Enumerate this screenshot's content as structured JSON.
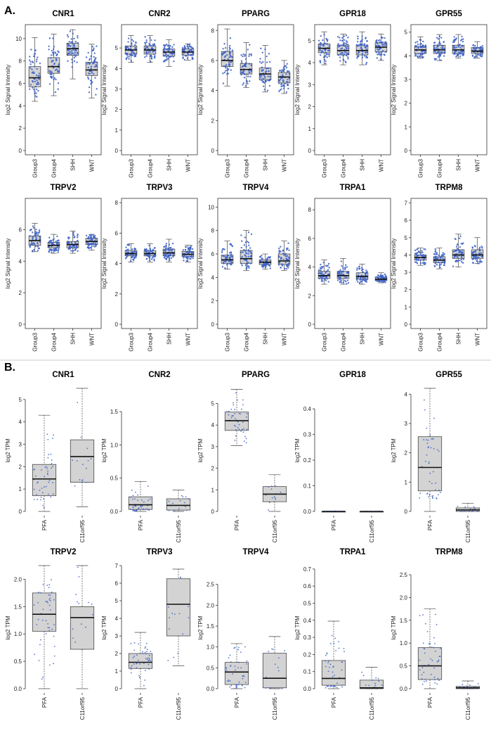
{
  "figure": {
    "section_a": "A.",
    "section_b": "B."
  },
  "chart_data": [
    {
      "id": "a-cnr1",
      "section": "A",
      "type": "boxplot",
      "title": "CNR1",
      "ylabel": "log2 Signal Intensity",
      "ylim": [
        0,
        11
      ],
      "yticks": [
        0,
        2,
        4,
        6,
        8,
        10
      ],
      "categories": [
        "Group3",
        "Group4",
        "SHH",
        "WNT"
      ],
      "boxes": [
        {
          "min": 4.4,
          "q1": 5.7,
          "median": 6.5,
          "q3": 7.5,
          "max": 10.1
        },
        {
          "min": 4.9,
          "q1": 6.9,
          "median": 7.5,
          "q3": 8.3,
          "max": 10.4
        },
        {
          "min": 6.4,
          "q1": 8.5,
          "median": 9.1,
          "q3": 9.6,
          "max": 10.8
        },
        {
          "min": 4.7,
          "q1": 6.7,
          "median": 7.2,
          "q3": 7.9,
          "max": 9.5
        }
      ]
    },
    {
      "id": "a-cnr2",
      "section": "A",
      "type": "boxplot",
      "title": "CNR2",
      "ylabel": "log2 Signal Intensity",
      "ylim": [
        0,
        6
      ],
      "yticks": [
        0,
        1,
        2,
        3,
        4,
        5
      ],
      "categories": [
        "Group3",
        "Group4",
        "SHH",
        "WNT"
      ],
      "boxes": [
        {
          "min": 4.3,
          "q1": 4.7,
          "median": 4.9,
          "q3": 5.1,
          "max": 5.6
        },
        {
          "min": 4.3,
          "q1": 4.7,
          "median": 4.9,
          "q3": 5.1,
          "max": 5.6
        },
        {
          "min": 4.1,
          "q1": 4.6,
          "median": 4.8,
          "q3": 4.95,
          "max": 5.4
        },
        {
          "min": 4.4,
          "q1": 4.65,
          "median": 4.8,
          "q3": 4.95,
          "max": 5.2
        }
      ]
    },
    {
      "id": "a-pparg",
      "section": "A",
      "type": "boxplot",
      "title": "PPARG",
      "ylabel": "log2 Signal Intensity",
      "ylim": [
        0,
        8.2
      ],
      "yticks": [
        0,
        2,
        4,
        6,
        8
      ],
      "categories": [
        "Group3",
        "Group4",
        "SHH",
        "WNT"
      ],
      "boxes": [
        {
          "min": 4.3,
          "q1": 5.6,
          "median": 6.0,
          "q3": 6.6,
          "max": 8.1
        },
        {
          "min": 4.2,
          "q1": 5.1,
          "median": 5.4,
          "q3": 5.8,
          "max": 7.2
        },
        {
          "min": 3.9,
          "q1": 4.7,
          "median": 5.1,
          "q3": 5.5,
          "max": 7.0
        },
        {
          "min": 3.8,
          "q1": 4.5,
          "median": 4.9,
          "q3": 5.2,
          "max": 6.0
        }
      ]
    },
    {
      "id": "a-gpr18",
      "section": "A",
      "type": "boxplot",
      "title": "GPR18",
      "ylabel": "log2 Signal Intensity",
      "ylim": [
        0,
        5.6
      ],
      "yticks": [
        0,
        1,
        2,
        3,
        4,
        5
      ],
      "categories": [
        "Group3",
        "Group4",
        "SHH",
        "WNT"
      ],
      "boxes": [
        {
          "min": 3.9,
          "q1": 4.45,
          "median": 4.65,
          "q3": 4.85,
          "max": 5.4
        },
        {
          "min": 3.9,
          "q1": 4.35,
          "median": 4.55,
          "q3": 4.8,
          "max": 5.3
        },
        {
          "min": 3.9,
          "q1": 4.35,
          "median": 4.55,
          "q3": 4.8,
          "max": 5.4
        },
        {
          "min": 4.1,
          "q1": 4.5,
          "median": 4.7,
          "q3": 4.9,
          "max": 5.3
        }
      ]
    },
    {
      "id": "a-gpr55",
      "section": "A",
      "type": "boxplot",
      "title": "GPR55",
      "ylabel": "log2 Signal Intensity",
      "ylim": [
        0,
        5.2
      ],
      "yticks": [
        0,
        1,
        2,
        3,
        4,
        5
      ],
      "categories": [
        "Group3",
        "Group4",
        "SHH",
        "WNT"
      ],
      "boxes": [
        {
          "min": 3.9,
          "q1": 4.1,
          "median": 4.25,
          "q3": 4.4,
          "max": 4.8
        },
        {
          "min": 3.8,
          "q1": 4.1,
          "median": 4.25,
          "q3": 4.45,
          "max": 4.9
        },
        {
          "min": 3.9,
          "q1": 4.1,
          "median": 4.25,
          "q3": 4.45,
          "max": 4.9
        },
        {
          "min": 3.9,
          "q1": 4.1,
          "median": 4.2,
          "q3": 4.35,
          "max": 4.6
        }
      ]
    },
    {
      "id": "a-trpv2",
      "section": "A",
      "type": "boxplot",
      "title": "TRPV2",
      "ylabel": "log2 Signal Intensity",
      "ylim": [
        0,
        7.8
      ],
      "yticks": [
        0,
        2,
        4,
        6
      ],
      "categories": [
        "Group3",
        "Group4",
        "SHH",
        "WNT"
      ],
      "boxes": [
        {
          "min": 4.6,
          "q1": 5.0,
          "median": 5.3,
          "q3": 5.6,
          "max": 6.4
        },
        {
          "min": 4.5,
          "q1": 4.85,
          "median": 5.0,
          "q3": 5.2,
          "max": 5.7
        },
        {
          "min": 4.5,
          "q1": 4.85,
          "median": 5.05,
          "q3": 5.25,
          "max": 5.9
        },
        {
          "min": 4.7,
          "q1": 5.05,
          "median": 5.25,
          "q3": 5.45,
          "max": 5.7
        }
      ]
    },
    {
      "id": "a-trpv3",
      "section": "A",
      "type": "boxplot",
      "title": "TRPV3",
      "ylabel": "log2 Signal Intensity",
      "ylim": [
        0,
        8.1
      ],
      "yticks": [
        0,
        2,
        4,
        6,
        8
      ],
      "categories": [
        "Group3",
        "Group4",
        "SHH",
        "WNT"
      ],
      "boxes": [
        {
          "min": 4.1,
          "q1": 4.5,
          "median": 4.65,
          "q3": 4.85,
          "max": 5.3
        },
        {
          "min": 4.1,
          "q1": 4.5,
          "median": 4.65,
          "q3": 4.85,
          "max": 5.3
        },
        {
          "min": 4.1,
          "q1": 4.5,
          "median": 4.7,
          "q3": 4.95,
          "max": 5.6
        },
        {
          "min": 4.1,
          "q1": 4.45,
          "median": 4.6,
          "q3": 4.8,
          "max": 5.2
        }
      ]
    },
    {
      "id": "a-trpv4",
      "section": "A",
      "type": "boxplot",
      "title": "TRPV4",
      "ylabel": "log2 Signal Intensity",
      "ylim": [
        0,
        10.5
      ],
      "yticks": [
        0,
        2,
        4,
        6,
        8,
        10
      ],
      "categories": [
        "Group3",
        "Group4",
        "SHH",
        "WNT"
      ],
      "boxes": [
        {
          "min": 4.7,
          "q1": 5.2,
          "median": 5.5,
          "q3": 5.9,
          "max": 7.1
        },
        {
          "min": 4.6,
          "q1": 5.2,
          "median": 5.6,
          "q3": 6.3,
          "max": 8.0
        },
        {
          "min": 4.7,
          "q1": 5.1,
          "median": 5.3,
          "q3": 5.5,
          "max": 6.0
        },
        {
          "min": 4.6,
          "q1": 5.1,
          "median": 5.4,
          "q3": 6.0,
          "max": 7.1
        }
      ]
    },
    {
      "id": "a-trpa1",
      "section": "A",
      "type": "boxplot",
      "title": "TRPA1",
      "ylabel": "log2 Signal Intensity",
      "ylim": [
        0,
        8.6
      ],
      "yticks": [
        0,
        2,
        4,
        6,
        8
      ],
      "categories": [
        "Group3",
        "Group4",
        "SHH",
        "WNT"
      ],
      "boxes": [
        {
          "min": 2.8,
          "q1": 3.2,
          "median": 3.4,
          "q3": 3.7,
          "max": 4.5
        },
        {
          "min": 2.8,
          "q1": 3.2,
          "median": 3.4,
          "q3": 3.7,
          "max": 4.6
        },
        {
          "min": 2.8,
          "q1": 3.15,
          "median": 3.35,
          "q3": 3.6,
          "max": 4.2
        },
        {
          "min": 2.9,
          "q1": 3.05,
          "median": 3.15,
          "q3": 3.3,
          "max": 3.6
        }
      ]
    },
    {
      "id": "a-trpm8",
      "section": "A",
      "type": "boxplot",
      "title": "TRPM8",
      "ylabel": "log2 Signal Intensity",
      "ylim": [
        0,
        7.1
      ],
      "yticks": [
        0,
        1,
        2,
        3,
        4,
        5,
        6,
        7
      ],
      "categories": [
        "Group3",
        "Group4",
        "SHH",
        "WNT"
      ],
      "boxes": [
        {
          "min": 3.4,
          "q1": 3.7,
          "median": 3.85,
          "q3": 4.0,
          "max": 4.4
        },
        {
          "min": 3.2,
          "q1": 3.55,
          "median": 3.7,
          "q3": 3.9,
          "max": 4.4
        },
        {
          "min": 3.3,
          "q1": 3.8,
          "median": 4.0,
          "q3": 4.3,
          "max": 5.2
        },
        {
          "min": 3.5,
          "q1": 3.8,
          "median": 4.0,
          "q3": 4.3,
          "max": 5.0
        }
      ]
    },
    {
      "id": "b-cnr1",
      "section": "B",
      "type": "boxplot",
      "title": "CNR1",
      "ylabel": "log2 TPM",
      "ylim": [
        0,
        5.5
      ],
      "yticks": [
        0,
        1,
        2,
        3,
        4,
        5
      ],
      "categories": [
        "PFA",
        "C11orf95"
      ],
      "boxes": [
        {
          "min": 0.0,
          "q1": 0.7,
          "median": 1.45,
          "q3": 2.1,
          "max": 4.3
        },
        {
          "min": 0.2,
          "q1": 1.3,
          "median": 2.45,
          "q3": 3.2,
          "max": 5.5
        }
      ]
    },
    {
      "id": "b-cnr2",
      "section": "B",
      "type": "boxplot",
      "title": "CNR2",
      "ylabel": "log2 TPM",
      "ylim": [
        0,
        1.85
      ],
      "yticks": [
        0.0,
        0.5,
        1.0,
        1.5
      ],
      "categories": [
        "PFA",
        "C11orf95"
      ],
      "boxes": [
        {
          "min": 0.0,
          "q1": 0.03,
          "median": 0.1,
          "q3": 0.22,
          "max": 0.45
        },
        {
          "min": 0.0,
          "q1": 0.02,
          "median": 0.09,
          "q3": 0.19,
          "max": 0.32
        }
      ]
    },
    {
      "id": "b-pparg",
      "section": "B",
      "type": "boxplot",
      "title": "PPARG",
      "ylabel": "log2 TPM",
      "ylim": [
        0,
        5.7
      ],
      "yticks": [
        0,
        1,
        2,
        3,
        4,
        5
      ],
      "categories": [
        "PFA",
        "C11orf95"
      ],
      "boxes": [
        {
          "min": 3.05,
          "q1": 3.75,
          "median": 4.2,
          "q3": 4.6,
          "max": 5.65
        },
        {
          "min": 0.0,
          "q1": 0.45,
          "median": 0.8,
          "q3": 1.15,
          "max": 1.7
        }
      ]
    },
    {
      "id": "b-gpr18",
      "section": "B",
      "type": "boxplot",
      "title": "GPR18",
      "ylabel": "log2 TPM",
      "ylim": [
        0,
        0.48
      ],
      "yticks": [
        0.0,
        0.1,
        0.2,
        0.3,
        0.4
      ],
      "categories": [
        "PFA",
        "C11orf95"
      ],
      "boxes": [
        {
          "min": 0.0,
          "q1": 0.0,
          "median": 0.0,
          "q3": 0.0,
          "max": 0.0
        },
        {
          "min": 0.0,
          "q1": 0.0,
          "median": 0.0,
          "q3": 0.0,
          "max": 0.0
        }
      ]
    },
    {
      "id": "b-gpr55",
      "section": "B",
      "type": "boxplot",
      "title": "GPR55",
      "ylabel": "log2 TPM",
      "ylim": [
        0,
        4.2
      ],
      "yticks": [
        0,
        1,
        2,
        3,
        4
      ],
      "categories": [
        "PFA",
        "C11orf95"
      ],
      "boxes": [
        {
          "min": 0.0,
          "q1": 0.7,
          "median": 1.5,
          "q3": 2.55,
          "max": 4.2
        },
        {
          "min": 0.0,
          "q1": 0.0,
          "median": 0.05,
          "q3": 0.12,
          "max": 0.28
        }
      ]
    },
    {
      "id": "b-trpv2",
      "section": "B",
      "type": "boxplot",
      "title": "TRPV2",
      "ylabel": "log2 TPM",
      "ylim": [
        0,
        2.25
      ],
      "yticks": [
        0.0,
        0.5,
        1.0,
        1.5,
        2.0
      ],
      "categories": [
        "PFA",
        "C11orf95"
      ],
      "boxes": [
        {
          "min": 0.0,
          "q1": 1.05,
          "median": 1.36,
          "q3": 1.75,
          "max": 2.25
        },
        {
          "min": 0.0,
          "q1": 0.72,
          "median": 1.3,
          "q3": 1.5,
          "max": 2.25
        }
      ]
    },
    {
      "id": "b-trpv3",
      "section": "B",
      "type": "boxplot",
      "title": "TRPV3",
      "ylabel": "log2 TPM",
      "ylim": [
        0,
        7.0
      ],
      "yticks": [
        0,
        1,
        2,
        3,
        4,
        5,
        6,
        7
      ],
      "categories": [
        "PFA",
        "C11orf95"
      ],
      "boxes": [
        {
          "min": 0.0,
          "q1": 1.15,
          "median": 1.5,
          "q3": 2.0,
          "max": 3.2
        },
        {
          "min": 1.3,
          "q1": 3.0,
          "median": 4.8,
          "q3": 6.25,
          "max": 6.8
        }
      ]
    },
    {
      "id": "b-trpv4",
      "section": "B",
      "type": "boxplot",
      "title": "TRPV4",
      "ylabel": "log2 TPM",
      "ylim": [
        0,
        2.95
      ],
      "yticks": [
        0.0,
        0.5,
        1.0,
        1.5,
        2.0,
        2.5
      ],
      "categories": [
        "PFA",
        "C11orf95"
      ],
      "boxes": [
        {
          "min": 0.0,
          "q1": 0.1,
          "median": 0.4,
          "q3": 0.63,
          "max": 1.08
        },
        {
          "min": 0.0,
          "q1": 0.02,
          "median": 0.25,
          "q3": 0.85,
          "max": 1.25
        }
      ]
    },
    {
      "id": "b-trpa1",
      "section": "B",
      "type": "boxplot",
      "title": "TRPA1",
      "ylabel": "log2 TPM",
      "ylim": [
        0,
        0.72
      ],
      "yticks": [
        0.0,
        0.1,
        0.2,
        0.3,
        0.4,
        0.5,
        0.6,
        0.7
      ],
      "categories": [
        "PFA",
        "C11orf95"
      ],
      "boxes": [
        {
          "min": 0.0,
          "q1": 0.02,
          "median": 0.06,
          "q3": 0.165,
          "max": 0.395
        },
        {
          "min": 0.0,
          "q1": 0.0,
          "median": 0.005,
          "q3": 0.05,
          "max": 0.125
        }
      ]
    },
    {
      "id": "b-trpm8",
      "section": "B",
      "type": "boxplot",
      "title": "TRPM8",
      "ylabel": "log2 TPM",
      "ylim": [
        0,
        2.7
      ],
      "yticks": [
        0.0,
        0.5,
        1.0,
        1.5,
        2.0,
        2.5
      ],
      "categories": [
        "PFA",
        "C11orf95"
      ],
      "boxes": [
        {
          "min": 0.0,
          "q1": 0.2,
          "median": 0.5,
          "q3": 0.9,
          "max": 1.75
        },
        {
          "min": 0.0,
          "q1": 0.0,
          "median": 0.02,
          "q3": 0.05,
          "max": 0.17
        }
      ]
    }
  ],
  "colors": {
    "box_fill": "#d3d3d3",
    "point": "#3a5fc8",
    "axis": "#333333"
  }
}
